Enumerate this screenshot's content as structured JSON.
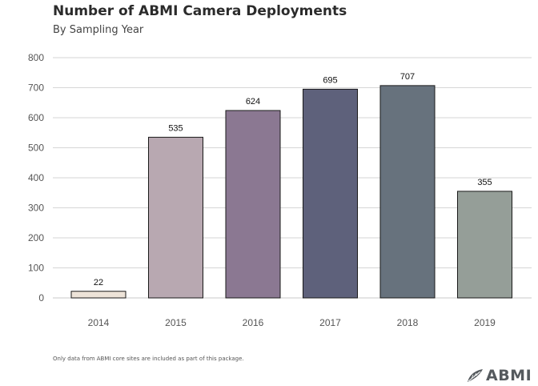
{
  "title": "Number of ABMI Camera Deployments",
  "subtitle": "By Sampling Year",
  "caption": "Only data from ABMI core sites are included as part of this package.",
  "logo": {
    "text": "ABMI",
    "icon": "abmi-leaf-icon",
    "color": "#555a5e"
  },
  "chart_data": {
    "type": "bar",
    "title": "Number of ABMI Camera Deployments",
    "subtitle": "By Sampling Year",
    "xlabel": "",
    "ylabel": "",
    "categories": [
      "2014",
      "2015",
      "2016",
      "2017",
      "2018",
      "2019"
    ],
    "values": [
      22,
      535,
      624,
      695,
      707,
      355
    ],
    "data_labels": [
      "22",
      "535",
      "624",
      "695",
      "707",
      "355"
    ],
    "colors": [
      "#ede3d8",
      "#b8a8b1",
      "#8b7892",
      "#5e617b",
      "#67727d",
      "#959e98"
    ],
    "ylim": [
      0,
      800
    ],
    "yticks": [
      0,
      100,
      200,
      300,
      400,
      500,
      600,
      700,
      800
    ],
    "grid": true,
    "legend": "none"
  }
}
